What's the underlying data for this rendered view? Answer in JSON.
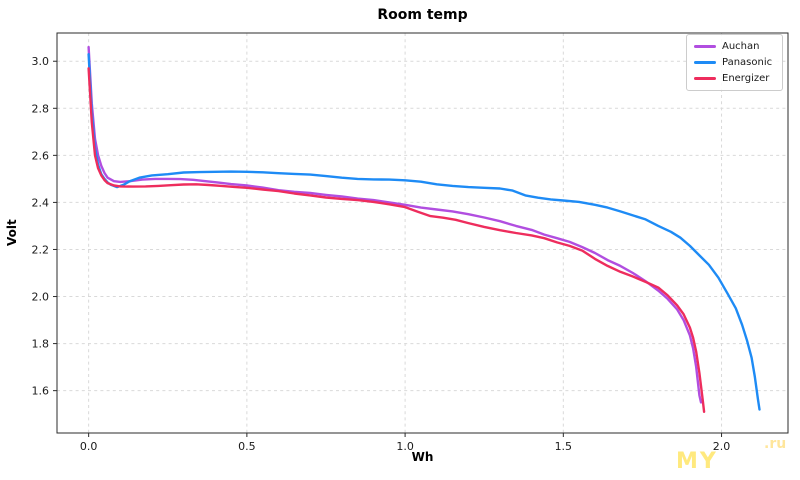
{
  "watermark": {
    "text_bottom": "MY",
    "text_top": ".ru",
    "color": "#ffe14d"
  },
  "chart_data": {
    "type": "line",
    "title": "Room temp",
    "xlabel": "Wh",
    "ylabel": "Volt",
    "xlim": [
      -0.1,
      2.21
    ],
    "ylim": [
      1.42,
      3.12
    ],
    "xticks": [
      0.0,
      0.5,
      1.0,
      1.5,
      2.0
    ],
    "yticks": [
      1.6,
      1.8,
      2.0,
      2.2,
      2.4,
      2.6,
      2.8,
      3.0
    ],
    "grid": true,
    "grid_style": "dashed",
    "legend_position": "upper right",
    "series": [
      {
        "name": "Auchan",
        "color": "#b14ee0",
        "points": [
          [
            0,
            3.06
          ],
          [
            0.01,
            2.82
          ],
          [
            0.02,
            2.67
          ],
          [
            0.03,
            2.6
          ],
          [
            0.04,
            2.555
          ],
          [
            0.05,
            2.525
          ],
          [
            0.06,
            2.505
          ],
          [
            0.08,
            2.49
          ],
          [
            0.1,
            2.487
          ],
          [
            0.13,
            2.49
          ],
          [
            0.17,
            2.497
          ],
          [
            0.21,
            2.5
          ],
          [
            0.25,
            2.5
          ],
          [
            0.29,
            2.499
          ],
          [
            0.33,
            2.496
          ],
          [
            0.37,
            2.49
          ],
          [
            0.41,
            2.484
          ],
          [
            0.45,
            2.478
          ],
          [
            0.5,
            2.472
          ],
          [
            0.55,
            2.463
          ],
          [
            0.6,
            2.452
          ],
          [
            0.65,
            2.445
          ],
          [
            0.7,
            2.44
          ],
          [
            0.75,
            2.432
          ],
          [
            0.8,
            2.425
          ],
          [
            0.85,
            2.416
          ],
          [
            0.9,
            2.41
          ],
          [
            0.95,
            2.4
          ],
          [
            1.0,
            2.39
          ],
          [
            1.05,
            2.378
          ],
          [
            1.1,
            2.37
          ],
          [
            1.15,
            2.362
          ],
          [
            1.2,
            2.35
          ],
          [
            1.25,
            2.336
          ],
          [
            1.3,
            2.32
          ],
          [
            1.35,
            2.3
          ],
          [
            1.4,
            2.283
          ],
          [
            1.44,
            2.263
          ],
          [
            1.48,
            2.248
          ],
          [
            1.52,
            2.232
          ],
          [
            1.56,
            2.21
          ],
          [
            1.6,
            2.185
          ],
          [
            1.64,
            2.155
          ],
          [
            1.68,
            2.13
          ],
          [
            1.72,
            2.1
          ],
          [
            1.76,
            2.065
          ],
          [
            1.8,
            2.025
          ],
          [
            1.83,
            1.99
          ],
          [
            1.86,
            1.945
          ],
          [
            1.88,
            1.9
          ],
          [
            1.9,
            1.835
          ],
          [
            1.91,
            1.78
          ],
          [
            1.92,
            1.7
          ],
          [
            1.93,
            1.58
          ],
          [
            1.935,
            1.55
          ]
        ]
      },
      {
        "name": "Panasonic",
        "color": "#1e8bf5",
        "points": [
          [
            0,
            3.03
          ],
          [
            0.01,
            2.78
          ],
          [
            0.02,
            2.63
          ],
          [
            0.03,
            2.56
          ],
          [
            0.04,
            2.52
          ],
          [
            0.05,
            2.5
          ],
          [
            0.06,
            2.485
          ],
          [
            0.07,
            2.475
          ],
          [
            0.09,
            2.465
          ],
          [
            0.11,
            2.475
          ],
          [
            0.13,
            2.49
          ],
          [
            0.16,
            2.505
          ],
          [
            0.2,
            2.515
          ],
          [
            0.25,
            2.52
          ],
          [
            0.3,
            2.527
          ],
          [
            0.35,
            2.529
          ],
          [
            0.4,
            2.53
          ],
          [
            0.45,
            2.531
          ],
          [
            0.5,
            2.53
          ],
          [
            0.55,
            2.528
          ],
          [
            0.6,
            2.524
          ],
          [
            0.65,
            2.521
          ],
          [
            0.7,
            2.518
          ],
          [
            0.75,
            2.512
          ],
          [
            0.8,
            2.505
          ],
          [
            0.85,
            2.5
          ],
          [
            0.9,
            2.498
          ],
          [
            0.95,
            2.497
          ],
          [
            1.0,
            2.494
          ],
          [
            1.05,
            2.488
          ],
          [
            1.1,
            2.477
          ],
          [
            1.15,
            2.47
          ],
          [
            1.2,
            2.465
          ],
          [
            1.25,
            2.462
          ],
          [
            1.3,
            2.459
          ],
          [
            1.34,
            2.45
          ],
          [
            1.38,
            2.43
          ],
          [
            1.42,
            2.42
          ],
          [
            1.46,
            2.413
          ],
          [
            1.5,
            2.408
          ],
          [
            1.55,
            2.402
          ],
          [
            1.6,
            2.39
          ],
          [
            1.64,
            2.378
          ],
          [
            1.68,
            2.362
          ],
          [
            1.72,
            2.345
          ],
          [
            1.76,
            2.328
          ],
          [
            1.8,
            2.3
          ],
          [
            1.84,
            2.275
          ],
          [
            1.87,
            2.25
          ],
          [
            1.9,
            2.215
          ],
          [
            1.93,
            2.175
          ],
          [
            1.96,
            2.135
          ],
          [
            1.99,
            2.08
          ],
          [
            2.02,
            2.01
          ],
          [
            2.045,
            1.95
          ],
          [
            2.065,
            1.88
          ],
          [
            2.08,
            1.815
          ],
          [
            2.095,
            1.74
          ],
          [
            2.105,
            1.66
          ],
          [
            2.115,
            1.565
          ],
          [
            2.12,
            1.52
          ]
        ]
      },
      {
        "name": "Energizer",
        "color": "#ee2d5d",
        "points": [
          [
            0,
            2.97
          ],
          [
            0.01,
            2.74
          ],
          [
            0.02,
            2.6
          ],
          [
            0.03,
            2.545
          ],
          [
            0.04,
            2.515
          ],
          [
            0.05,
            2.495
          ],
          [
            0.06,
            2.482
          ],
          [
            0.08,
            2.472
          ],
          [
            0.1,
            2.468
          ],
          [
            0.14,
            2.467
          ],
          [
            0.18,
            2.468
          ],
          [
            0.22,
            2.47
          ],
          [
            0.26,
            2.473
          ],
          [
            0.3,
            2.476
          ],
          [
            0.34,
            2.477
          ],
          [
            0.38,
            2.474
          ],
          [
            0.42,
            2.47
          ],
          [
            0.46,
            2.466
          ],
          [
            0.5,
            2.462
          ],
          [
            0.55,
            2.455
          ],
          [
            0.6,
            2.448
          ],
          [
            0.65,
            2.438
          ],
          [
            0.7,
            2.43
          ],
          [
            0.75,
            2.421
          ],
          [
            0.8,
            2.415
          ],
          [
            0.85,
            2.41
          ],
          [
            0.9,
            2.402
          ],
          [
            0.95,
            2.392
          ],
          [
            1.0,
            2.38
          ],
          [
            1.04,
            2.36
          ],
          [
            1.08,
            2.342
          ],
          [
            1.12,
            2.335
          ],
          [
            1.16,
            2.326
          ],
          [
            1.2,
            2.312
          ],
          [
            1.25,
            2.296
          ],
          [
            1.3,
            2.282
          ],
          [
            1.35,
            2.27
          ],
          [
            1.4,
            2.26
          ],
          [
            1.44,
            2.248
          ],
          [
            1.48,
            2.23
          ],
          [
            1.52,
            2.215
          ],
          [
            1.56,
            2.195
          ],
          [
            1.6,
            2.16
          ],
          [
            1.64,
            2.13
          ],
          [
            1.68,
            2.105
          ],
          [
            1.72,
            2.085
          ],
          [
            1.76,
            2.062
          ],
          [
            1.8,
            2.038
          ],
          [
            1.83,
            2.005
          ],
          [
            1.86,
            1.962
          ],
          [
            1.88,
            1.925
          ],
          [
            1.9,
            1.868
          ],
          [
            1.91,
            1.825
          ],
          [
            1.92,
            1.765
          ],
          [
            1.93,
            1.675
          ],
          [
            1.94,
            1.565
          ],
          [
            1.945,
            1.51
          ]
        ]
      }
    ]
  }
}
